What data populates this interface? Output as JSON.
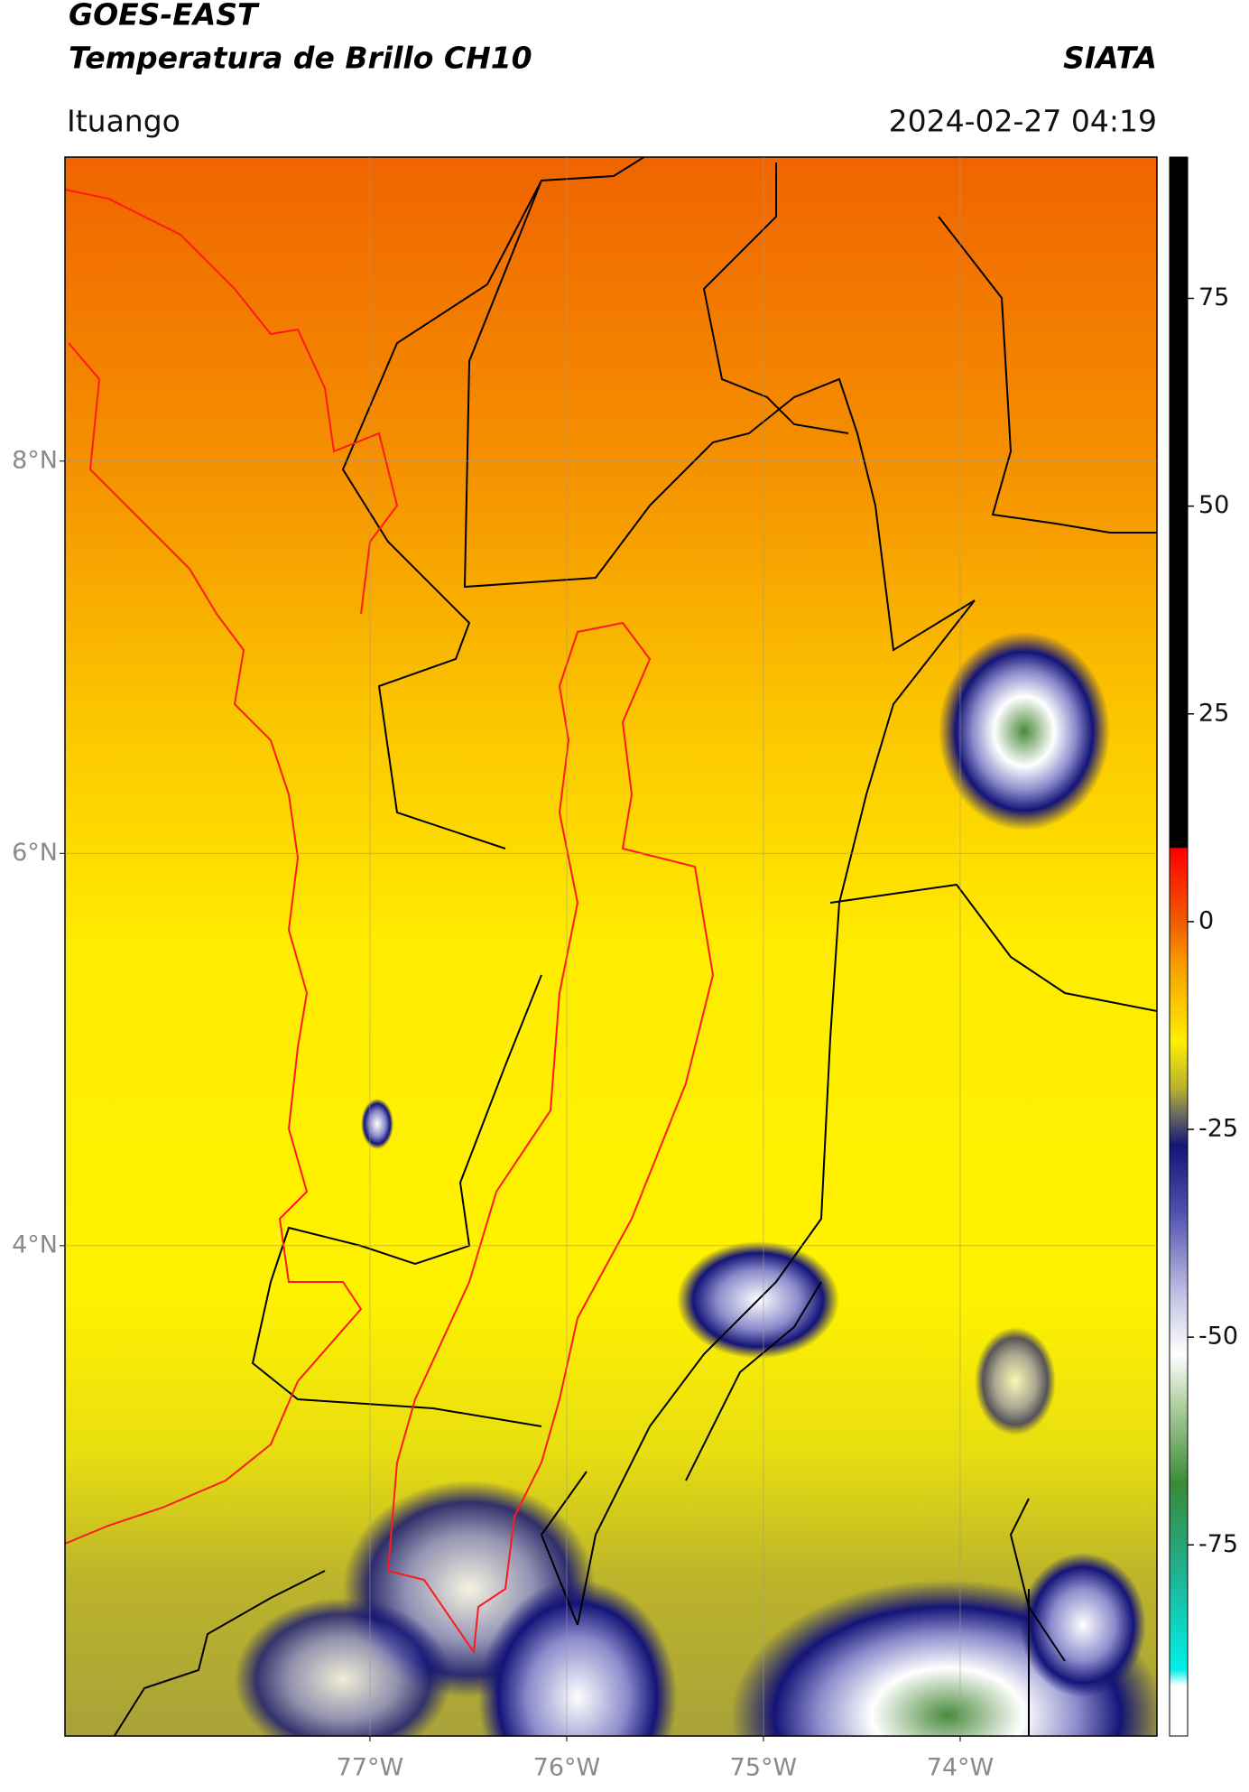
{
  "header": {
    "title": "GOES-EAST",
    "subtitle": "Temperatura de Brillo CH10",
    "source": "SIATA",
    "location": "Ituango",
    "datetime": "2024-02-27 04:19"
  },
  "map": {
    "xlim": [
      -78.55,
      -73.0
    ],
    "ylim": [
      1.5,
      9.55
    ],
    "xticks": [
      {
        "value": -77,
        "label": "77°W"
      },
      {
        "value": -76,
        "label": "76°W"
      },
      {
        "value": -75,
        "label": "75°W"
      },
      {
        "value": -74,
        "label": "74°W"
      }
    ],
    "yticks": [
      {
        "value": 8,
        "label": "8°N"
      },
      {
        "value": 6,
        "label": "6°N"
      },
      {
        "value": 4,
        "label": "4°N"
      }
    ],
    "grid": true
  },
  "colorbar": {
    "lim": [
      -98,
      92
    ],
    "ticks": [
      75,
      50,
      25,
      0,
      -25,
      -50,
      -75
    ]
  }
}
